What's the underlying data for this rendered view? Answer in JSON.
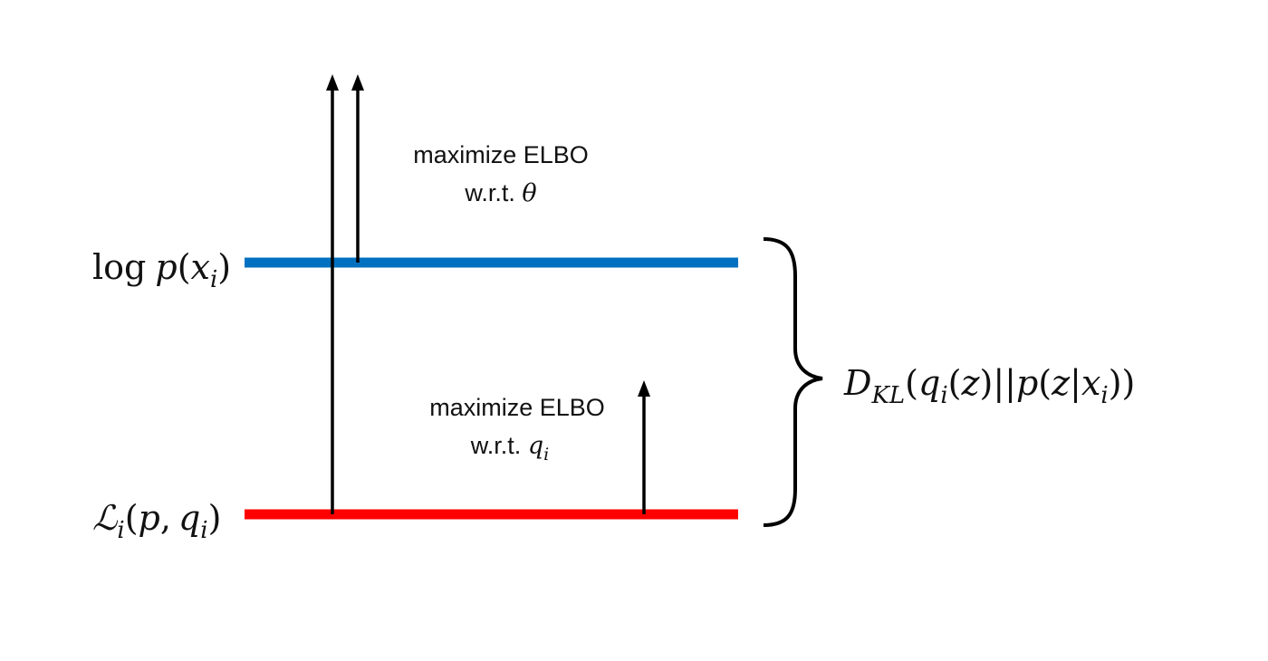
{
  "colors": {
    "upper_line": "#0070C0",
    "lower_line": "#FF0000",
    "ink": "#000000",
    "background": "#FFFFFF"
  },
  "labels": {
    "log_likelihood": {
      "prefix": "log",
      "p": "p",
      "open": "(",
      "x": "x",
      "sub": "i",
      "close": ")"
    },
    "elbo_bound": {
      "L": "ℒ",
      "sub": "i",
      "open": "(",
      "p": "p",
      "comma": ",",
      "q": "q",
      "qsub": "i",
      "close": ")"
    },
    "kl_divergence": {
      "D": "D",
      "sub": "KL",
      "open1": "(",
      "q": "q",
      "qsub": "i",
      "open2": "(",
      "z1": "z",
      "mid": ")||",
      "p": "p",
      "open3": "(",
      "z2": "z",
      "bar": "|",
      "x": "x",
      "xsub": "i",
      "close": "))"
    }
  },
  "annotations": {
    "theta_step": {
      "line1": "maximize ELBO",
      "prefix": "w.r.t. ",
      "symbol": "θ"
    },
    "q_step": {
      "line1": "maximize ELBO",
      "prefix": "w.r.t. ",
      "symbol": "q",
      "sub": "i"
    }
  }
}
